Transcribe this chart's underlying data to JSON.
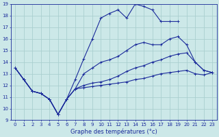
{
  "title": "Graphe des températures (°c)",
  "bg_color": "#cce8e8",
  "grid_color": "#aacfcf",
  "line_color": "#1a2a9a",
  "xlim": [
    -0.5,
    23.5
  ],
  "ylim": [
    9,
    19
  ],
  "xticks": [
    0,
    1,
    2,
    3,
    4,
    5,
    6,
    7,
    8,
    9,
    10,
    11,
    12,
    13,
    14,
    15,
    16,
    17,
    18,
    19,
    20,
    21,
    22,
    23
  ],
  "yticks": [
    9,
    10,
    11,
    12,
    13,
    14,
    15,
    16,
    17,
    18,
    19
  ],
  "line_top_x": [
    0,
    1,
    2,
    3,
    4,
    5,
    6,
    7,
    8,
    9,
    10,
    11,
    12,
    13,
    14,
    15,
    16,
    17,
    18,
    19
  ],
  "line_top_y": [
    13.5,
    12.5,
    11.5,
    11.3,
    10.8,
    9.5,
    10.8,
    12.5,
    14.3,
    16.0,
    17.8,
    18.2,
    18.5,
    17.8,
    19.0,
    18.8,
    18.5,
    17.5,
    17.5,
    17.5
  ],
  "line_mid1_x": [
    0,
    1,
    2,
    3,
    4,
    5,
    6,
    7,
    8,
    9,
    10,
    11,
    12,
    13,
    14,
    15,
    16,
    17,
    18,
    19,
    20,
    21,
    22,
    23
  ],
  "line_mid1_y": [
    13.5,
    12.5,
    11.5,
    11.3,
    10.8,
    9.5,
    10.8,
    11.7,
    13.0,
    13.5,
    14.0,
    14.2,
    14.5,
    15.0,
    15.5,
    15.7,
    15.5,
    15.5,
    16.0,
    16.2,
    15.5,
    14.0,
    13.3,
    13.1
  ],
  "line_mid2_x": [
    0,
    1,
    2,
    3,
    4,
    5,
    6,
    7,
    8,
    9,
    10,
    11,
    12,
    13,
    14,
    15,
    16,
    17,
    18,
    19,
    20,
    21,
    22,
    23
  ],
  "line_mid2_y": [
    13.5,
    12.5,
    11.5,
    11.3,
    10.8,
    9.5,
    10.8,
    11.7,
    12.0,
    12.2,
    12.3,
    12.5,
    12.8,
    13.2,
    13.5,
    13.7,
    14.0,
    14.2,
    14.5,
    14.7,
    14.8,
    14.0,
    13.3,
    13.1
  ],
  "line_bot_x": [
    0,
    1,
    2,
    3,
    4,
    5,
    6,
    7,
    8,
    9,
    10,
    11,
    12,
    13,
    14,
    15,
    16,
    17,
    18,
    19,
    20,
    21,
    22,
    23
  ],
  "line_bot_y": [
    13.5,
    12.5,
    11.5,
    11.3,
    10.8,
    9.5,
    10.8,
    11.7,
    11.8,
    11.9,
    12.0,
    12.1,
    12.2,
    12.3,
    12.5,
    12.6,
    12.8,
    13.0,
    13.1,
    13.2,
    13.3,
    13.0,
    12.9,
    13.1
  ]
}
